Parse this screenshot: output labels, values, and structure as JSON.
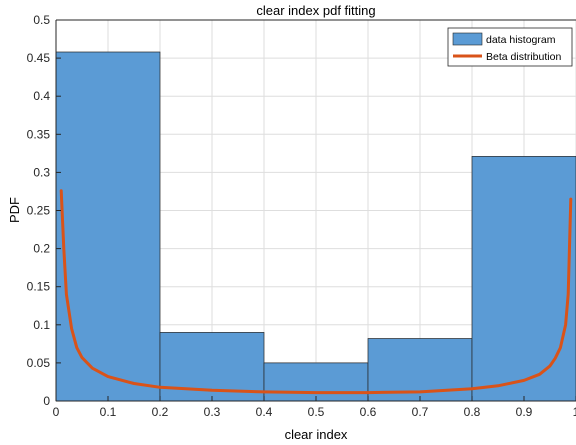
{
  "chart_data": {
    "type": "bar",
    "title": "clear index pdf fitting",
    "xlabel": "clear index",
    "ylabel": "PDF",
    "xlim": [
      0,
      1
    ],
    "ylim": [
      0,
      0.5
    ],
    "grid": true,
    "legend_position": "top-right",
    "x_ticks": [
      "0",
      "0.1",
      "0.2",
      "0.3",
      "0.4",
      "0.5",
      "0.6",
      "0.7",
      "0.8",
      "0.9",
      "1"
    ],
    "y_ticks": [
      "0",
      "0.05",
      "0.1",
      "0.15",
      "0.2",
      "0.25",
      "0.3",
      "0.35",
      "0.4",
      "0.45",
      "0.5"
    ],
    "series": [
      {
        "name": "data histogram",
        "type": "bar",
        "color": "#5b9bd5",
        "bin_edges": [
          0,
          0.2,
          0.4,
          0.6,
          0.8,
          1.0
        ],
        "values": [
          0.458,
          0.09,
          0.05,
          0.082,
          0.321
        ]
      },
      {
        "name": "Beta distribution",
        "type": "line",
        "color": "#d95319",
        "x": [
          0.01,
          0.015,
          0.02,
          0.03,
          0.04,
          0.05,
          0.07,
          0.1,
          0.15,
          0.2,
          0.3,
          0.4,
          0.5,
          0.6,
          0.7,
          0.8,
          0.85,
          0.9,
          0.93,
          0.95,
          0.96,
          0.97,
          0.98,
          0.985,
          0.99
        ],
        "y": [
          0.276,
          0.2,
          0.14,
          0.095,
          0.07,
          0.057,
          0.043,
          0.032,
          0.023,
          0.018,
          0.014,
          0.012,
          0.011,
          0.011,
          0.012,
          0.016,
          0.02,
          0.027,
          0.035,
          0.046,
          0.056,
          0.07,
          0.1,
          0.14,
          0.265
        ]
      }
    ]
  }
}
